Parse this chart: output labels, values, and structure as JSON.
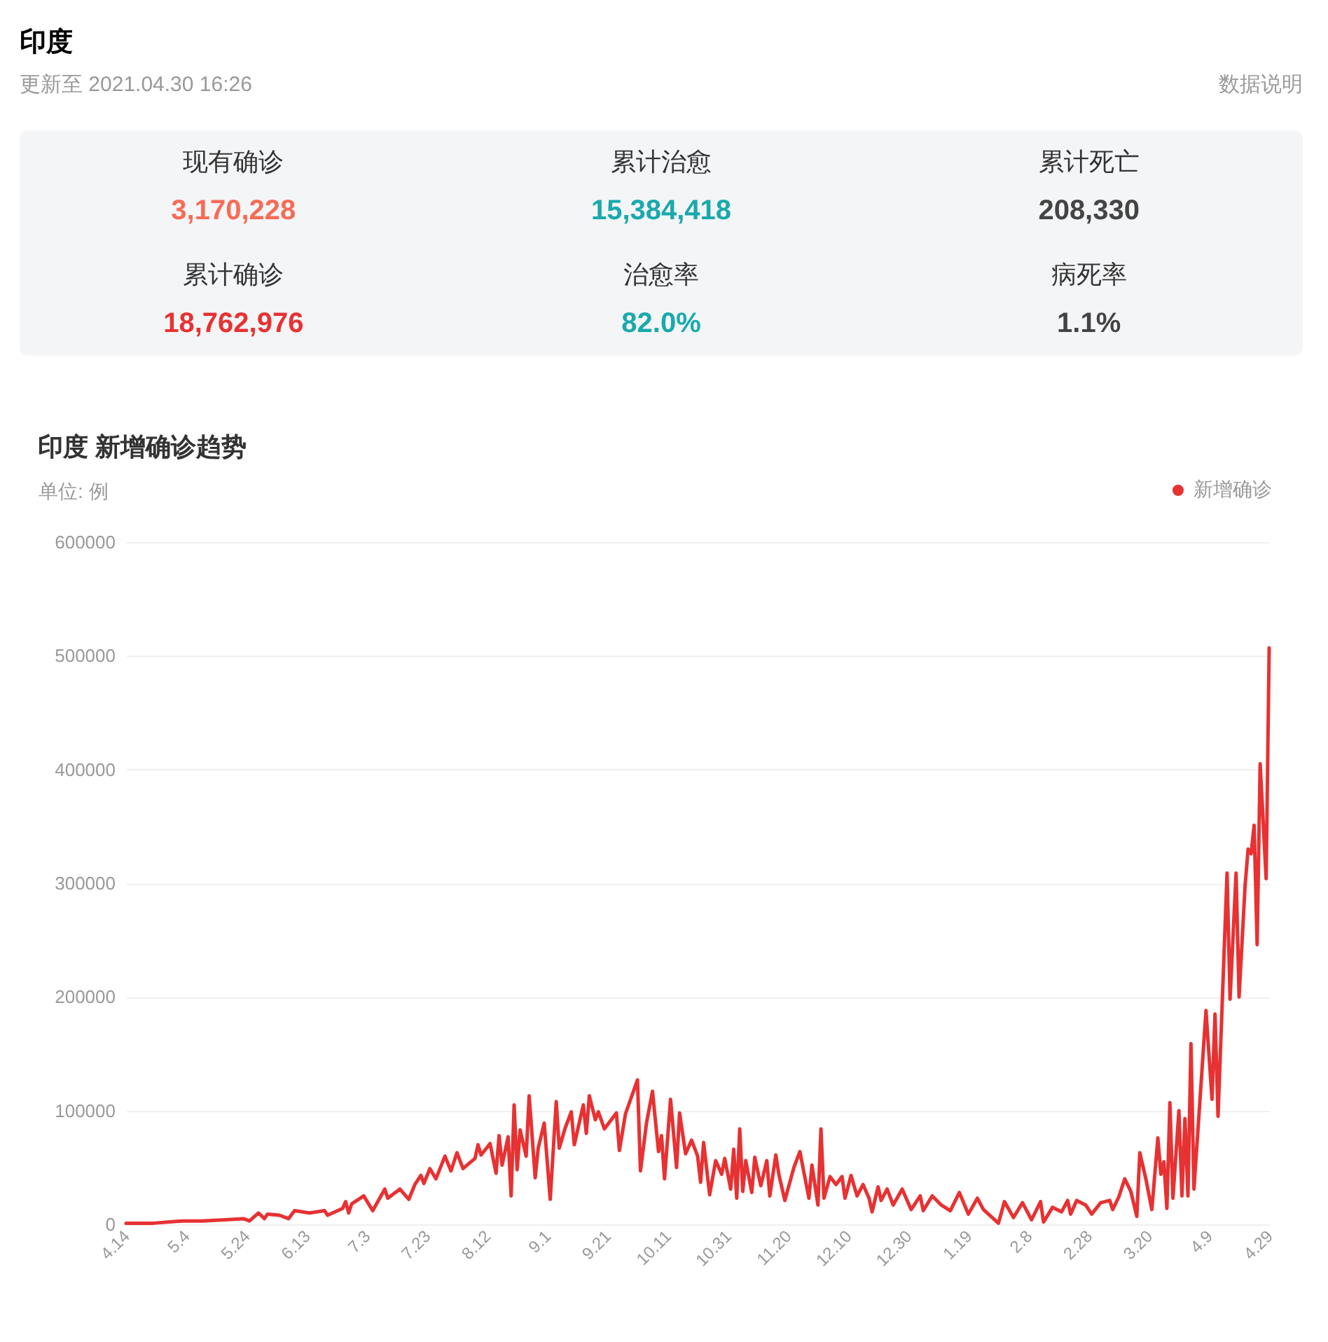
{
  "chart_data": [
    {
      "type": "other",
      "title": "印度",
      "subtitle": "更新至 2021.04.30 16:26",
      "annotations": [
        "数据说明"
      ],
      "categories": [
        "现有确诊",
        "累计治愈",
        "累计死亡",
        "累计确诊",
        "治愈率",
        "病死率"
      ],
      "value_labels": [
        "3,170,228",
        "15,384,418",
        "208,330",
        "18,762,976",
        "82.0%",
        "1.1%"
      ]
    },
    {
      "type": "line",
      "title": "印度 新增确诊趋势",
      "ylabel": "单位: 例",
      "xlim": [
        "2020-04-14",
        "2021-04-29"
      ],
      "xticks": [
        {
          "value": "2020-04-14",
          "label": "4.14"
        },
        {
          "value": "2020-05-04",
          "label": "5.4"
        },
        {
          "value": "2020-05-24",
          "label": "5.24"
        },
        {
          "value": "2020-06-13",
          "label": "6.13"
        },
        {
          "value": "2020-07-03",
          "label": "7.3"
        },
        {
          "value": "2020-07-23",
          "label": "7.23"
        },
        {
          "value": "2020-08-12",
          "label": "8.12"
        },
        {
          "value": "2020-09-01",
          "label": "9.1"
        },
        {
          "value": "2020-09-21",
          "label": "9.21"
        },
        {
          "value": "2020-10-11",
          "label": "10.11"
        },
        {
          "value": "2020-10-31",
          "label": "10.31"
        },
        {
          "value": "2020-11-20",
          "label": "11.20"
        },
        {
          "value": "2020-12-10",
          "label": "12.10"
        },
        {
          "value": "2020-12-30",
          "label": "12.30"
        },
        {
          "value": "2021-01-19",
          "label": "1.19"
        },
        {
          "value": "2021-02-08",
          "label": "2.8"
        },
        {
          "value": "2021-02-28",
          "label": "2.28"
        },
        {
          "value": "2021-03-20",
          "label": "3.20"
        },
        {
          "value": "2021-04-09",
          "label": "4.9"
        },
        {
          "value": "2021-04-29",
          "label": "4.29"
        }
      ],
      "ylim": [
        0,
        600000
      ],
      "yticks": [
        0,
        100000,
        200000,
        300000,
        400000,
        500000,
        600000
      ],
      "grid": "y",
      "legend": "top right",
      "line_style": "solid",
      "series": [
        {
          "name": "新增确诊",
          "color": "#e83132",
          "x": [
            "2020-04-14",
            "2020-04-23",
            "2020-05-03",
            "2020-05-09",
            "2020-05-17",
            "2020-05-23",
            "2020-05-25",
            "2020-05-28",
            "2020-05-30",
            "2020-05-31",
            "2020-06-04",
            "2020-06-07",
            "2020-06-09",
            "2020-06-14",
            "2020-06-19",
            "2020-06-20",
            "2020-06-25",
            "2020-06-26",
            "2020-06-27",
            "2020-06-28",
            "2020-07-02",
            "2020-07-05",
            "2020-07-09",
            "2020-07-10",
            "2020-07-14",
            "2020-07-17",
            "2020-07-19",
            "2020-07-21",
            "2020-07-22",
            "2020-07-24",
            "2020-07-26",
            "2020-07-29",
            "2020-07-31",
            "2020-08-02",
            "2020-08-04",
            "2020-08-08",
            "2020-08-09",
            "2020-08-10",
            "2020-08-13",
            "2020-08-15",
            "2020-08-16",
            "2020-08-17",
            "2020-08-19",
            "2020-08-20",
            "2020-08-21",
            "2020-08-22",
            "2020-08-23",
            "2020-08-25",
            "2020-08-26",
            "2020-08-28",
            "2020-08-29",
            "2020-08-31",
            "2020-09-02",
            "2020-09-04",
            "2020-09-05",
            "2020-09-07",
            "2020-09-09",
            "2020-09-10",
            "2020-09-13",
            "2020-09-14",
            "2020-09-15",
            "2020-09-17",
            "2020-09-18",
            "2020-09-20",
            "2020-09-24",
            "2020-09-25",
            "2020-09-27",
            "2020-10-01",
            "2020-10-02",
            "2020-10-04",
            "2020-10-06",
            "2020-10-08",
            "2020-10-09",
            "2020-10-10",
            "2020-10-12",
            "2020-10-14",
            "2020-10-15",
            "2020-10-17",
            "2020-10-19",
            "2020-10-21",
            "2020-10-22",
            "2020-10-23",
            "2020-10-25",
            "2020-10-27",
            "2020-10-29",
            "2020-10-30",
            "2020-11-01",
            "2020-11-02",
            "2020-11-03",
            "2020-11-04",
            "2020-11-05",
            "2020-11-06",
            "2020-11-08",
            "2020-11-09",
            "2020-11-11",
            "2020-11-13",
            "2020-11-14",
            "2020-11-16",
            "2020-11-17",
            "2020-11-19",
            "2020-11-22",
            "2020-11-24",
            "2020-11-27",
            "2020-11-28",
            "2020-11-30",
            "2020-12-01",
            "2020-12-02",
            "2020-12-04",
            "2020-12-06",
            "2020-12-08",
            "2020-12-09",
            "2020-12-11",
            "2020-12-13",
            "2020-12-15",
            "2020-12-17",
            "2020-12-18",
            "2020-12-20",
            "2020-12-21",
            "2020-12-23",
            "2020-12-25",
            "2020-12-28",
            "2020-12-31",
            "2021-01-03",
            "2021-01-04",
            "2021-01-07",
            "2021-01-10",
            "2021-01-13",
            "2021-01-16",
            "2021-01-19",
            "2021-01-22",
            "2021-01-24",
            "2021-01-29",
            "2021-01-31",
            "2021-02-03",
            "2021-02-06",
            "2021-02-09",
            "2021-02-12",
            "2021-02-13",
            "2021-02-16",
            "2021-02-19",
            "2021-02-21",
            "2021-02-22",
            "2021-02-24",
            "2021-02-27",
            "2021-03-01",
            "2021-03-04",
            "2021-03-07",
            "2021-03-08",
            "2021-03-10",
            "2021-03-12",
            "2021-03-14",
            "2021-03-16",
            "2021-03-17",
            "2021-03-19",
            "2021-03-21",
            "2021-03-23",
            "2021-03-24",
            "2021-03-25",
            "2021-03-26",
            "2021-03-27",
            "2021-03-28",
            "2021-03-30",
            "2021-03-31",
            "2021-04-01",
            "2021-04-02",
            "2021-04-03",
            "2021-04-04",
            "2021-04-08",
            "2021-04-10",
            "2021-04-11",
            "2021-04-12",
            "2021-04-15",
            "2021-04-16",
            "2021-04-18",
            "2021-04-19",
            "2021-04-21",
            "2021-04-22",
            "2021-04-23",
            "2021-04-24",
            "2021-04-25",
            "2021-04-26",
            "2021-04-28",
            "2021-04-29"
          ],
          "values": [
            1000,
            1000,
            3000,
            3000,
            4000,
            5000,
            3000,
            10000,
            5000,
            9000,
            8000,
            5000,
            12000,
            10000,
            12000,
            8000,
            14000,
            20000,
            10000,
            18000,
            25000,
            12000,
            31000,
            23000,
            31000,
            22000,
            35000,
            43000,
            36000,
            49000,
            40000,
            60000,
            47000,
            63000,
            49000,
            58000,
            70000,
            61000,
            71000,
            45000,
            78000,
            52000,
            77000,
            25000,
            105000,
            48000,
            83000,
            60000,
            113000,
            41000,
            67000,
            89000,
            22000,
            108000,
            67000,
            85000,
            99000,
            70000,
            105000,
            80000,
            113000,
            92000,
            99000,
            84000,
            98000,
            65000,
            97000,
            127000,
            47000,
            89000,
            117000,
            64000,
            78000,
            40000,
            110000,
            50000,
            98000,
            62000,
            74000,
            60000,
            37000,
            72000,
            26000,
            56000,
            44000,
            58000,
            31000,
            66000,
            23000,
            84000,
            29000,
            56000,
            28000,
            59000,
            34000,
            56000,
            25000,
            61000,
            44000,
            21000,
            50000,
            64000,
            23000,
            52000,
            17000,
            84000,
            23000,
            42000,
            35000,
            42000,
            23000,
            43000,
            25000,
            35000,
            23000,
            11000,
            33000,
            21000,
            31000,
            17000,
            31000,
            13000,
            25000,
            12000,
            25000,
            17000,
            12000,
            28000,
            9000,
            23000,
            13000,
            1000,
            20000,
            6000,
            19000,
            4000,
            20000,
            2000,
            15000,
            11000,
            21000,
            9000,
            21000,
            17000,
            9000,
            19000,
            21000,
            13000,
            24000,
            40000,
            29000,
            7000,
            63000,
            40000,
            13000,
            76000,
            44000,
            55000,
            14000,
            107000,
            23000,
            100000,
            25000,
            93000,
            25000,
            159000,
            31000,
            188000,
            110000,
            185000,
            95000,
            309000,
            198000,
            309000,
            200000,
            298000,
            330000,
            326000,
            351000,
            246000,
            405000,
            304000,
            507000
          ]
        }
      ]
    }
  ]
}
